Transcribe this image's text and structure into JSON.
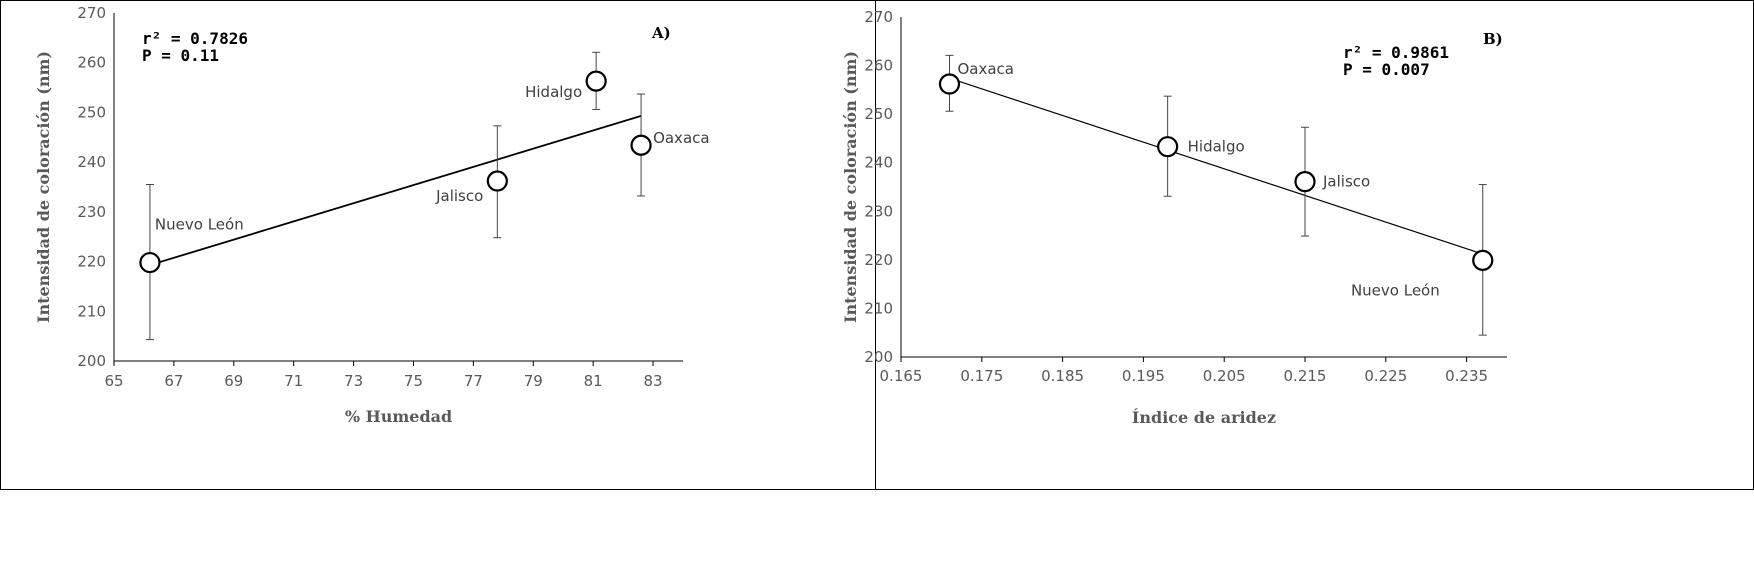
{
  "chart_data": [
    {
      "type": "scatter",
      "panel_label": "A)",
      "xlabel": "% Humedad",
      "ylabel": "Intensidad de coloración (nm)",
      "xlim": [
        65,
        84
      ],
      "ylim": [
        200,
        270
      ],
      "xticks": [
        65,
        67,
        69,
        71,
        73,
        75,
        77,
        79,
        81,
        83
      ],
      "yticks": [
        200,
        210,
        220,
        230,
        240,
        250,
        260,
        270
      ],
      "stats": [
        "r² = 0.7826",
        "P = 0.11"
      ],
      "points": [
        {
          "label": "Nuevo León",
          "x": 66.2,
          "y": 219.8,
          "err_low": 204.3,
          "err_high": 235.5
        },
        {
          "label": "Jalisco",
          "x": 77.8,
          "y": 236.2,
          "err_low": 224.8,
          "err_high": 247.3
        },
        {
          "label": "Hidalgo",
          "x": 81.1,
          "y": 256.3,
          "err_low": 250.6,
          "err_high": 262.1
        },
        {
          "label": "Oaxaca",
          "x": 82.6,
          "y": 243.4,
          "err_low": 233.2,
          "err_high": 253.7
        }
      ],
      "trendline": {
        "x": [
          66.2,
          82.6
        ],
        "y": [
          219.3,
          249.3
        ]
      }
    },
    {
      "type": "scatter",
      "panel_label": "B)",
      "xlabel": "Índice de aridez",
      "ylabel": "Intensidad de coloración (nm)",
      "xlim": [
        0.165,
        0.24
      ],
      "ylim": [
        200,
        270
      ],
      "xticks": [
        "0.165",
        "0.175",
        "0.185",
        "0.195",
        "0.205",
        "0.215",
        "0.225",
        "0.235"
      ],
      "yticks": [
        200,
        210,
        220,
        230,
        240,
        250,
        260,
        270
      ],
      "stats": [
        "r² = 0.9861",
        "P = 0.007"
      ],
      "points": [
        {
          "label": "Oaxaca",
          "x": 0.171,
          "y": 256.2,
          "err_low": 250.6,
          "err_high": 262.1
        },
        {
          "label": "Hidalgo",
          "x": 0.198,
          "y": 243.3,
          "err_low": 233.1,
          "err_high": 253.7
        },
        {
          "label": "Jalisco",
          "x": 0.215,
          "y": 236.1,
          "err_low": 224.9,
          "err_high": 247.3
        },
        {
          "label": "Nuevo León",
          "x": 0.237,
          "y": 219.9,
          "err_low": 204.5,
          "err_high": 235.5
        }
      ],
      "trendline": {
        "x": [
          0.171,
          0.237
        ],
        "y": [
          257.4,
          221.2
        ]
      }
    }
  ]
}
